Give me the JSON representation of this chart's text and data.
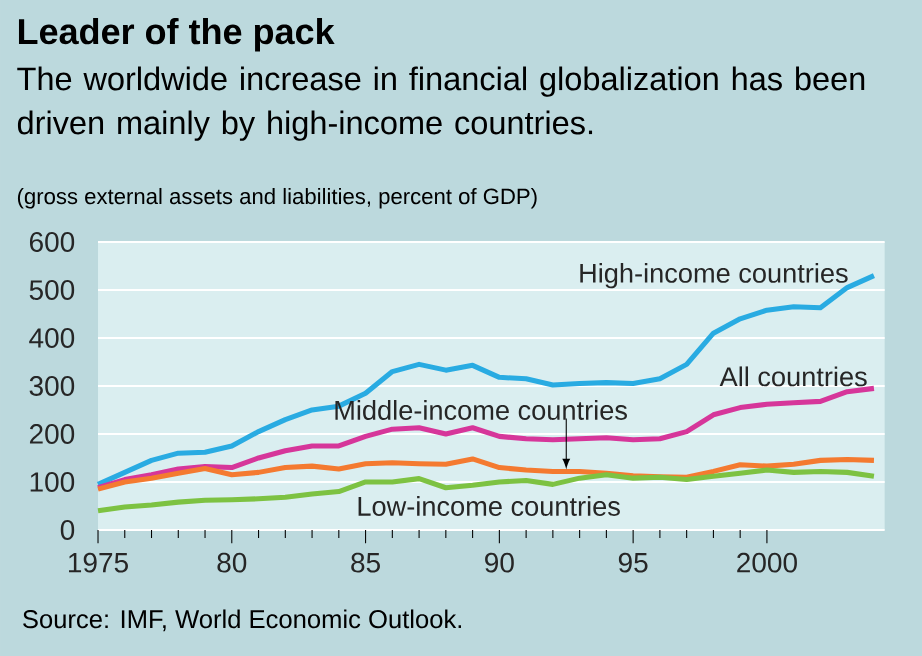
{
  "chart_data": {
    "type": "line",
    "title": "Leader of the pack",
    "subtitle": "The worldwide increase in financial globalization has been driven mainly by high-income countries.",
    "annotations": [
      "(gross external assets and liabilities, percent of GDP)",
      "Source: IMF, World Economic Outlook."
    ],
    "x": [
      1975,
      1976,
      1977,
      1978,
      1979,
      1980,
      1981,
      1982,
      1983,
      1984,
      1985,
      1986,
      1987,
      1988,
      1989,
      1990,
      1991,
      1992,
      1993,
      1994,
      1995,
      1996,
      1997,
      1998,
      1999,
      2000,
      2001,
      2002,
      2003,
      2004
    ],
    "series": [
      {
        "name": "High-income countries",
        "color": "#29abe2",
        "values": [
          95,
          120,
          145,
          160,
          162,
          175,
          205,
          230,
          250,
          258,
          285,
          330,
          345,
          333,
          343,
          318,
          315,
          302,
          305,
          307,
          305,
          315,
          345,
          410,
          440,
          458,
          465,
          463,
          505,
          530
        ]
      },
      {
        "name": "All countries",
        "color": "#d6369a",
        "values": [
          88,
          105,
          115,
          127,
          132,
          130,
          150,
          165,
          175,
          175,
          195,
          210,
          213,
          200,
          213,
          195,
          190,
          188,
          190,
          192,
          188,
          190,
          205,
          240,
          255,
          262,
          265,
          268,
          288,
          295
        ]
      },
      {
        "name": "Middle-income countries",
        "color": "#f47a30",
        "values": [
          85,
          100,
          108,
          118,
          128,
          115,
          120,
          130,
          133,
          127,
          138,
          140,
          138,
          137,
          148,
          130,
          125,
          122,
          122,
          118,
          113,
          111,
          110,
          122,
          136,
          133,
          137,
          145,
          147,
          145
        ]
      },
      {
        "name": "Low-income countries",
        "color": "#7dc242",
        "values": [
          40,
          48,
          52,
          58,
          62,
          63,
          65,
          68,
          75,
          80,
          100,
          100,
          107,
          88,
          93,
          100,
          103,
          95,
          108,
          115,
          108,
          110,
          105,
          112,
          118,
          125,
          120,
          122,
          120,
          112
        ]
      }
    ],
    "xlim": [
      1975,
      2004.4
    ],
    "ylim": [
      0,
      600
    ],
    "xticks": [
      {
        "value": 1975,
        "label": "1975"
      },
      {
        "value": 1980,
        "label": "80"
      },
      {
        "value": 1985,
        "label": "85"
      },
      {
        "value": 1990,
        "label": "90"
      },
      {
        "value": 1995,
        "label": "95"
      },
      {
        "value": 2000,
        "label": "2000"
      }
    ],
    "yticks": [
      0,
      100,
      200,
      300,
      400,
      500,
      600
    ],
    "grid": "y",
    "legend": false,
    "marker": "none",
    "line_style": "solid"
  }
}
